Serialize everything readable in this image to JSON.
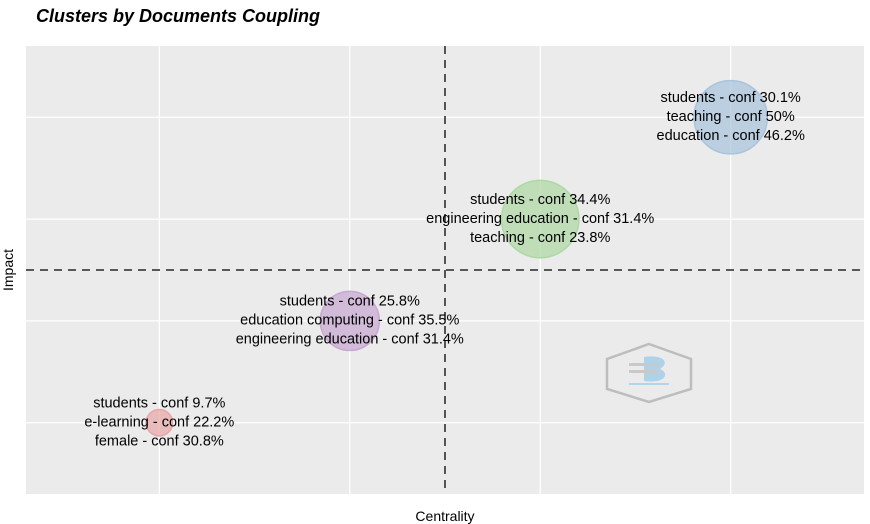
{
  "chart_data": {
    "type": "scatter",
    "title": "Clusters by Documents Coupling",
    "xlabel": "Centrality",
    "ylabel": "Impact",
    "grid": true,
    "xlim": [
      0.3,
      4.7
    ],
    "ylim": [
      0.3,
      4.7
    ],
    "reference_lines": {
      "x": 2.5,
      "y": 2.5
    },
    "clusters": [
      {
        "x": 1,
        "y": 1,
        "size": 0.13,
        "color": "#e8a6a6",
        "labels": [
          "students - conf 9.7%",
          "e-learning - conf 22.2%",
          "female - conf 30.8%"
        ]
      },
      {
        "x": 2,
        "y": 2,
        "size": 0.29,
        "color": "#c7a8d1",
        "labels": [
          "students - conf 25.8%",
          "education computing - conf 35.5%",
          "engineering education - conf 31.4%"
        ]
      },
      {
        "x": 3,
        "y": 3,
        "size": 0.38,
        "color": "#add8a3",
        "labels": [
          "students - conf 34.4%",
          "engineering education - conf 31.4%",
          "teaching - conf 23.8%"
        ]
      },
      {
        "x": 4,
        "y": 4,
        "size": 0.36,
        "color": "#a9c4dd",
        "labels": [
          "students - conf 30.1%",
          "teaching - conf 50%",
          "education - conf 46.2%"
        ]
      }
    ]
  }
}
